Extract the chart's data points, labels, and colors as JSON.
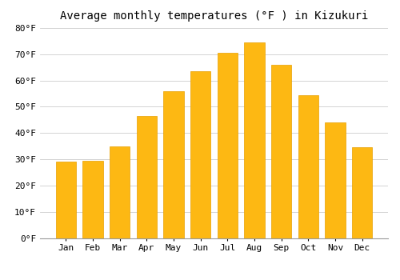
{
  "title": "Average monthly temperatures (°F ) in Kizukuri",
  "months": [
    "Jan",
    "Feb",
    "Mar",
    "Apr",
    "May",
    "Jun",
    "Jul",
    "Aug",
    "Sep",
    "Oct",
    "Nov",
    "Dec"
  ],
  "values": [
    29,
    29.5,
    35,
    46.5,
    56,
    63.5,
    70.5,
    74.5,
    66,
    54.5,
    44,
    34.5
  ],
  "bar_color": "#FDB813",
  "bar_edge_color": "#E8A000",
  "background_color": "#FFFFFF",
  "grid_color": "#CCCCCC",
  "ylim": [
    0,
    80
  ],
  "yticks": [
    0,
    10,
    20,
    30,
    40,
    50,
    60,
    70,
    80
  ],
  "ylabel_suffix": "°F",
  "title_fontsize": 10,
  "tick_fontsize": 8,
  "font_family": "monospace"
}
